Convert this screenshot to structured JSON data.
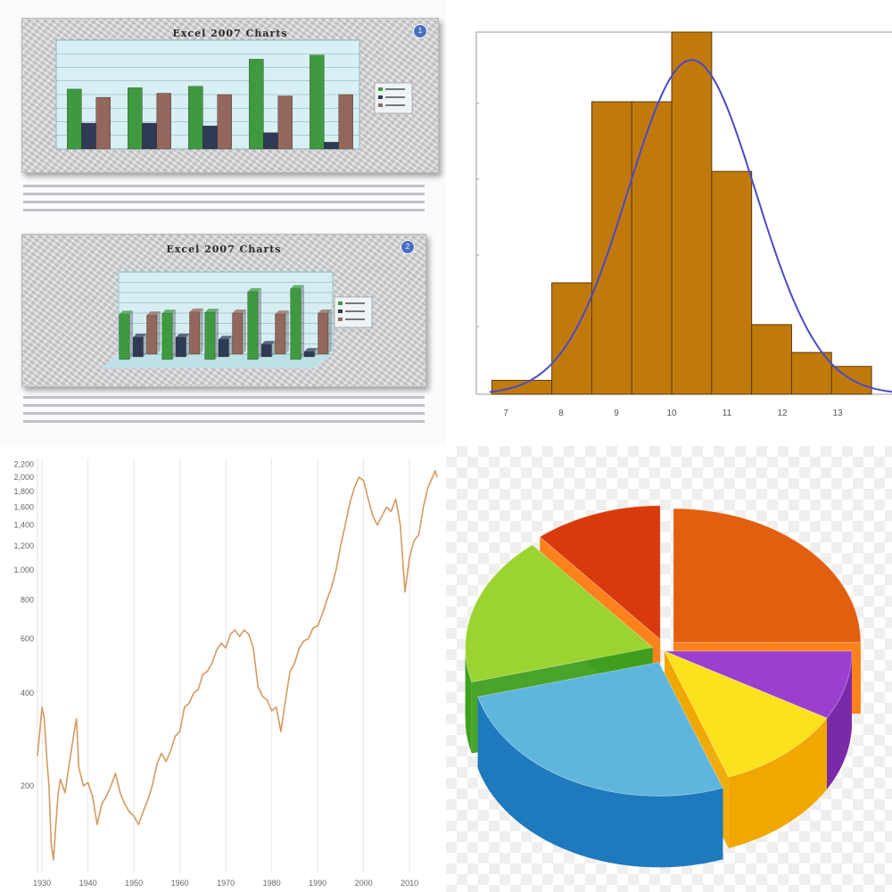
{
  "chart_data": [
    {
      "type": "bar",
      "title": "Excel 2007 Charts",
      "card_number": "1",
      "series": [
        {
          "values": [
            220,
            225,
            230,
            330,
            345
          ],
          "color": "#3f9a3f"
        },
        {
          "values": [
            95,
            95,
            85,
            60,
            25
          ],
          "color": "#2f3a55"
        },
        {
          "values": [
            190,
            205,
            200,
            195,
            200
          ],
          "color": "#94675c"
        }
      ],
      "ylim": [
        0,
        400
      ],
      "grid": true,
      "legend": "right"
    },
    {
      "type": "bar",
      "title": "Excel 2007 Charts",
      "card_number": "2",
      "style": "3d",
      "series": [
        {
          "values": [
            220,
            225,
            230,
            330,
            345
          ],
          "color": "#3f9a3f"
        },
        {
          "values": [
            95,
            95,
            85,
            60,
            25
          ],
          "color": "#2f3a55"
        },
        {
          "values": [
            190,
            205,
            200,
            195,
            200
          ],
          "color": "#94675c"
        }
      ],
      "ylim": [
        0,
        400
      ],
      "grid": true,
      "legend": "right"
    },
    {
      "type": "bar",
      "subtype": "histogram-with-normal-curve",
      "x_ticks": [
        "7",
        "8",
        "9",
        "10",
        "11",
        "12",
        "13"
      ],
      "bins": [
        {
          "from": 6.75,
          "to": 7.5,
          "count": 1
        },
        {
          "from": 7.5,
          "to": 8.0,
          "count": 8
        },
        {
          "from": 8.0,
          "to": 8.5,
          "count": 21
        },
        {
          "from": 8.5,
          "to": 9.0,
          "count": 21
        },
        {
          "from": 9.0,
          "to": 9.5,
          "count": 26
        },
        {
          "from": 9.5,
          "to": 10.0,
          "count": 16
        },
        {
          "from": 10.0,
          "to": 10.5,
          "count": 5
        },
        {
          "from": 10.5,
          "to": 11.0,
          "count": 3
        },
        {
          "from": 11.0,
          "to": 11.5,
          "count": 2
        }
      ],
      "curve": {
        "mean": 9.25,
        "sd": 0.8,
        "peak": 24
      },
      "xlim": [
        6.6,
        11.7
      ],
      "ylim": [
        0,
        26
      ],
      "bar_color": "#c07a0c",
      "curve_color": "#4a4ac8"
    },
    {
      "type": "line",
      "scale": "log",
      "x_ticks": [
        "1930",
        "1940",
        "1950",
        "1960",
        "1970",
        "1980",
        "1990",
        "2000",
        "2010"
      ],
      "y_ticks": [
        "2,200",
        "2,000",
        "1,800",
        "1,600",
        "1,400",
        "1,200",
        "1,000",
        "800",
        "600",
        "400",
        "200"
      ],
      "ylim": [
        105,
        2300
      ],
      "xlim": [
        1929,
        2016
      ],
      "line_color": "#d49a5f",
      "points": [
        [
          1929,
          250
        ],
        [
          1929.5,
          300
        ],
        [
          1930,
          360
        ],
        [
          1930.5,
          330
        ],
        [
          1931,
          250
        ],
        [
          1931.5,
          200
        ],
        [
          1932,
          130
        ],
        [
          1932.5,
          115
        ],
        [
          1933,
          150
        ],
        [
          1933.5,
          190
        ],
        [
          1934,
          210
        ],
        [
          1935,
          190
        ],
        [
          1936,
          240
        ],
        [
          1937,
          300
        ],
        [
          1937.5,
          330
        ],
        [
          1938,
          230
        ],
        [
          1939,
          200
        ],
        [
          1940,
          205
        ],
        [
          1941,
          185
        ],
        [
          1942,
          150
        ],
        [
          1943,
          175
        ],
        [
          1944,
          185
        ],
        [
          1945,
          200
        ],
        [
          1946,
          220
        ],
        [
          1947,
          190
        ],
        [
          1948,
          175
        ],
        [
          1949,
          165
        ],
        [
          1950,
          160
        ],
        [
          1951,
          150
        ],
        [
          1952,
          165
        ],
        [
          1953,
          180
        ],
        [
          1954,
          200
        ],
        [
          1955,
          235
        ],
        [
          1956,
          255
        ],
        [
          1957,
          240
        ],
        [
          1958,
          260
        ],
        [
          1959,
          290
        ],
        [
          1960,
          300
        ],
        [
          1961,
          360
        ],
        [
          1962,
          370
        ],
        [
          1963,
          400
        ],
        [
          1964,
          410
        ],
        [
          1965,
          460
        ],
        [
          1966,
          470
        ],
        [
          1967,
          500
        ],
        [
          1968,
          550
        ],
        [
          1969,
          580
        ],
        [
          1970,
          560
        ],
        [
          1971,
          620
        ],
        [
          1972,
          640
        ],
        [
          1973,
          610
        ],
        [
          1974,
          640
        ],
        [
          1975,
          620
        ],
        [
          1976,
          560
        ],
        [
          1977,
          420
        ],
        [
          1978,
          390
        ],
        [
          1979,
          380
        ],
        [
          1980,
          350
        ],
        [
          1981,
          360
        ],
        [
          1982,
          300
        ],
        [
          1983,
          380
        ],
        [
          1984,
          470
        ],
        [
          1985,
          500
        ],
        [
          1986,
          560
        ],
        [
          1987,
          590
        ],
        [
          1988,
          600
        ],
        [
          1989,
          650
        ],
        [
          1990,
          660
        ],
        [
          1991,
          720
        ],
        [
          1992,
          800
        ],
        [
          1993,
          880
        ],
        [
          1994,
          1000
        ],
        [
          1995,
          1200
        ],
        [
          1996,
          1400
        ],
        [
          1997,
          1650
        ],
        [
          1998,
          1850
        ],
        [
          1999,
          2000
        ],
        [
          2000,
          1950
        ],
        [
          2001,
          1700
        ],
        [
          2002,
          1500
        ],
        [
          2003,
          1400
        ],
        [
          2004,
          1500
        ],
        [
          2005,
          1600
        ],
        [
          2006,
          1550
        ],
        [
          2007,
          1700
        ],
        [
          2008,
          1400
        ],
        [
          2009,
          850
        ],
        [
          2010,
          1100
        ],
        [
          2011,
          1250
        ],
        [
          2012,
          1300
        ],
        [
          2013,
          1600
        ],
        [
          2014,
          1850
        ],
        [
          2015,
          2000
        ],
        [
          2015.6,
          2100
        ],
        [
          2016,
          2000
        ]
      ]
    },
    {
      "type": "pie",
      "style": "3d-exploded",
      "slices": [
        {
          "start": -90,
          "end": 0,
          "top": "#e25f10",
          "side": "#ff7a10",
          "explode": 1
        },
        {
          "start": 0,
          "end": 30,
          "top": "#9a3fcf",
          "side": "#7a2aa6",
          "explode": 0
        },
        {
          "start": 30,
          "end": 70,
          "top": "#fce11c",
          "side": "#f0a800",
          "explode": 0
        },
        {
          "start": 70,
          "end": 165,
          "top": "#5fb6dd",
          "side": "#1f79bd",
          "explode": 1
        },
        {
          "start": 165,
          "end": 230,
          "top": "#9bd330",
          "side": "#3f9f1e",
          "explode": 1
        },
        {
          "start": 230,
          "end": 270,
          "top": "#d83a0e",
          "side": "#ff7a10",
          "explode": 1
        }
      ]
    }
  ]
}
